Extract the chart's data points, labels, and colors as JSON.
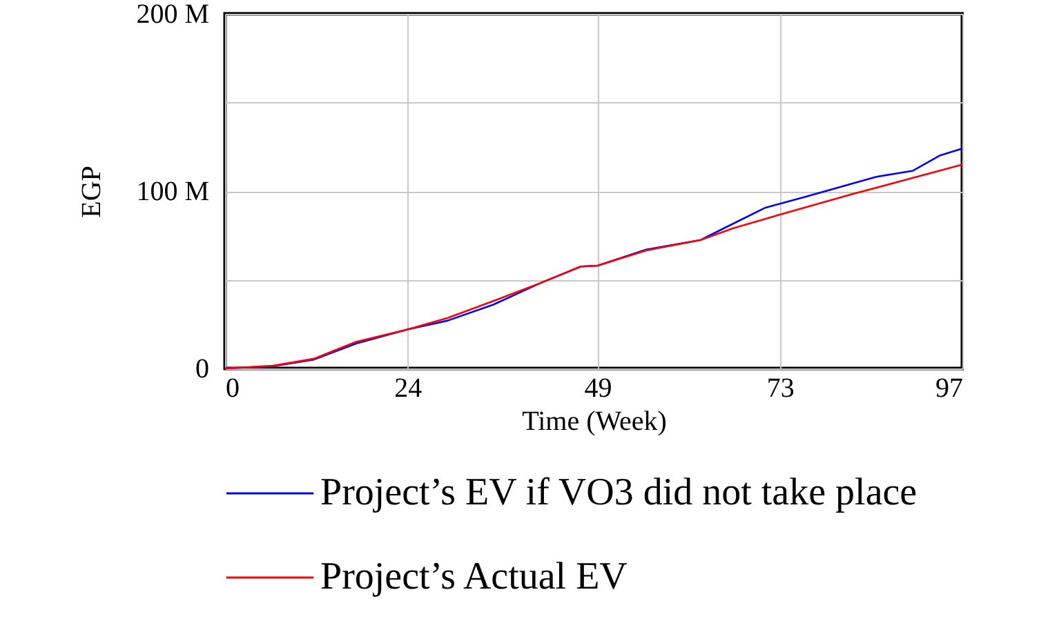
{
  "chart_data": {
    "type": "line",
    "xlabel": "Time (Week)",
    "ylabel": "EGP",
    "x": [
      0,
      6.3,
      11.7,
      17.2,
      24,
      29.3,
      35.3,
      41.4,
      46.8,
      49,
      55.4,
      62.6,
      65.6,
      71.1,
      76.5,
      85.6,
      90.5,
      94,
      97
    ],
    "series": [
      {
        "name": "Project’s EV if VO3 did not take place",
        "color": "#0000ff",
        "values": [
          0,
          1.3,
          5,
          14,
          22,
          27,
          36,
          48,
          57.5,
          58,
          67,
          72.5,
          79,
          90.7,
          97,
          108,
          111.5,
          120,
          124
        ]
      },
      {
        "name": "Project’s Actual EV",
        "color": "#ff0000",
        "x": [
          0,
          6.3,
          11.7,
          17.2,
          24,
          29.3,
          35.3,
          41.4,
          46.8,
          49,
          55.4,
          62.6,
          66.8,
          73,
          82.6,
          90.5,
          97
        ],
        "values": [
          0,
          1.5,
          5.5,
          15,
          22,
          28.5,
          38,
          48,
          57.5,
          58,
          66.5,
          72.5,
          79,
          86.8,
          98.4,
          107.5,
          115
        ]
      }
    ],
    "xlim": [
      0,
      97
    ],
    "xticks": [
      0,
      24,
      49,
      73,
      97
    ],
    "ylim": [
      0,
      200
    ],
    "yticks": [
      0,
      {
        "value": 50,
        "label": null
      },
      {
        "value": 100,
        "label": "100 M"
      },
      {
        "value": 150,
        "label": null
      },
      {
        "value": 200,
        "label": "200 M"
      }
    ],
    "grid": true,
    "legend": "bottom",
    "line_style": "solid",
    "marker": "none"
  }
}
